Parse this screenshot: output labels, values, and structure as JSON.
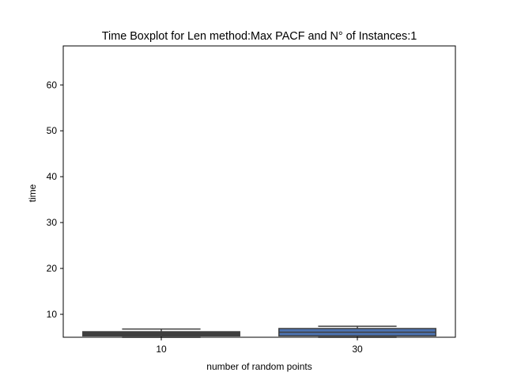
{
  "chart_data": {
    "type": "boxplot",
    "title": "Time Boxplot for Len method:Max PACF and N° of Instances:1",
    "xlabel": "number of random points",
    "ylabel": "time",
    "categories": [
      "10",
      "30"
    ],
    "ylim": [
      5.0,
      68.5
    ],
    "yticks": [
      10,
      20,
      30,
      40,
      50,
      60
    ],
    "grid": false,
    "boxes": [
      {
        "category": "10",
        "whisker_low": 5.0,
        "q1": 5.3,
        "median": 5.75,
        "q3": 6.2,
        "whisker_high": 6.8,
        "color": "#3f3f3f"
      },
      {
        "category": "30",
        "whisker_low": 5.0,
        "q1": 5.3,
        "median": 6.1,
        "q3": 6.9,
        "whisker_high": 7.4,
        "color": "#4c72b0"
      }
    ]
  }
}
